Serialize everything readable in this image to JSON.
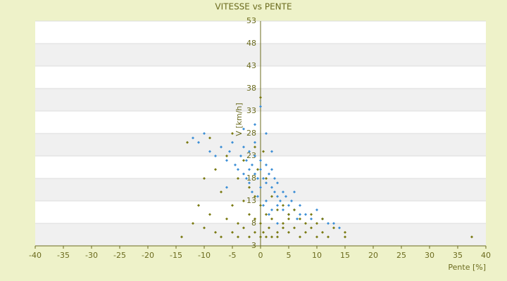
{
  "chart_data": {
    "type": "scatter",
    "title": "VITESSE vs PENTE",
    "x_label": "Pente [%]",
    "y_label": "V [km/h]",
    "xlim": [
      -40,
      40
    ],
    "xticks": [
      -40,
      -35,
      -30,
      -25,
      -20,
      -15,
      -10,
      -5,
      0,
      5,
      10,
      15,
      20,
      25,
      30,
      35,
      40
    ],
    "ylim": [
      3,
      53
    ],
    "yticks": [
      3,
      8,
      13,
      18,
      23,
      28,
      33,
      38,
      43,
      48,
      53
    ],
    "grid": true,
    "series": [
      {
        "color": "#3d8fd6",
        "x": [
          -12,
          -11,
          -10,
          -9,
          -8,
          -7,
          -6,
          -5.5,
          -5,
          -4.5,
          -4,
          -3.5,
          -3,
          -3,
          -2.5,
          -2.5,
          -2,
          -2,
          -2,
          -1.5,
          -1.5,
          -1,
          -1,
          -1,
          -0.5,
          -0.5,
          0,
          0,
          0,
          0.5,
          0.5,
          1,
          1,
          1,
          1.5,
          1.5,
          2,
          2,
          2,
          2.5,
          2.5,
          3,
          3,
          3,
          3.5,
          4,
          4,
          4.5,
          5,
          5,
          5.5,
          6,
          6,
          6.5,
          7,
          7,
          8,
          9,
          10,
          11,
          12,
          13,
          14,
          -1,
          0,
          1,
          2,
          -3,
          3,
          -6
        ],
        "values": [
          27,
          26,
          28,
          24,
          23,
          25,
          22,
          24,
          26,
          21,
          20,
          23,
          19,
          25,
          18,
          22,
          20,
          24,
          17,
          21,
          15,
          19,
          23,
          26,
          18,
          14,
          20,
          16,
          22,
          18,
          12,
          17,
          21,
          13,
          19,
          10,
          16,
          20,
          11,
          15,
          18,
          14,
          12,
          17,
          13,
          15,
          11,
          14,
          12,
          10,
          13,
          11,
          15,
          9,
          12,
          10,
          10,
          9,
          11,
          9,
          8,
          8,
          7,
          30,
          34,
          28,
          24,
          29,
          8,
          16
        ]
      },
      {
        "color": "#7a7a12",
        "x": [
          -14,
          -13,
          -12,
          -11,
          -10,
          -10,
          -9,
          -9,
          -8,
          -8,
          -7,
          -7,
          -6,
          -6,
          -5,
          -5,
          -5,
          -4,
          -4,
          -4,
          -3,
          -3,
          -3,
          -2,
          -2,
          -2,
          -1,
          -1,
          -1,
          -1,
          0,
          0,
          0,
          0,
          0.5,
          1,
          1,
          1,
          1.5,
          2,
          2,
          2,
          3,
          3,
          3,
          4,
          4,
          4,
          5,
          5,
          5,
          6,
          6,
          7,
          7,
          8,
          8,
          9,
          9,
          10,
          10,
          11,
          11,
          12,
          13,
          15,
          15,
          -0.5,
          37.5,
          0.5
        ],
        "values": [
          5,
          26,
          8,
          12,
          7,
          18,
          27,
          10,
          6,
          20,
          15,
          5,
          9,
          23,
          6,
          12,
          28,
          8,
          18,
          5,
          7,
          13,
          22,
          5,
          10,
          16,
          6,
          9,
          14,
          25,
          5,
          8,
          12,
          36,
          6,
          5,
          10,
          18,
          7,
          5,
          9,
          14,
          6,
          11,
          5,
          8,
          12,
          7,
          9,
          6,
          10,
          7,
          11,
          5,
          9,
          8,
          6,
          7,
          10,
          5,
          8,
          6,
          9,
          5,
          7,
          5,
          6,
          20,
          5,
          24
        ]
      }
    ]
  }
}
